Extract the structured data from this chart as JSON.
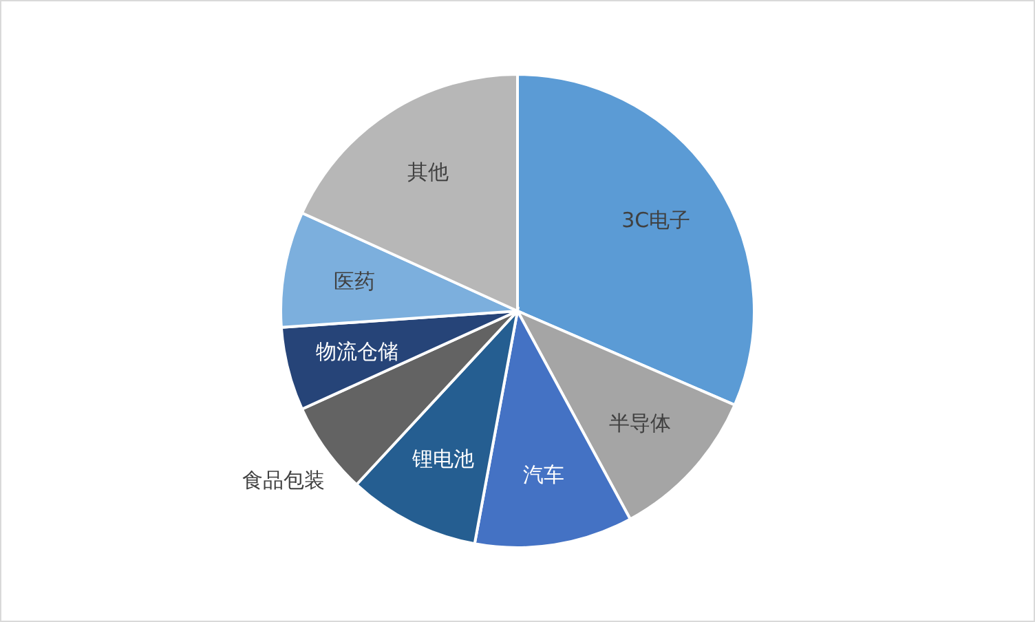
{
  "chart_data": {
    "type": "pie",
    "categories": [
      "3C电子",
      "半导体",
      "汽车",
      "锂电池",
      "食品包装",
      "物流仓储",
      "医药",
      "其他"
    ],
    "values": [
      31.5,
      10.6,
      10.8,
      9.0,
      6.3,
      5.7,
      7.9,
      18.2
    ],
    "colors": [
      "#5b9bd5",
      "#a5a5a5",
      "#4472c4",
      "#255e91",
      "#636363",
      "#264478",
      "#7cafdd",
      "#b7b7b7"
    ]
  }
}
